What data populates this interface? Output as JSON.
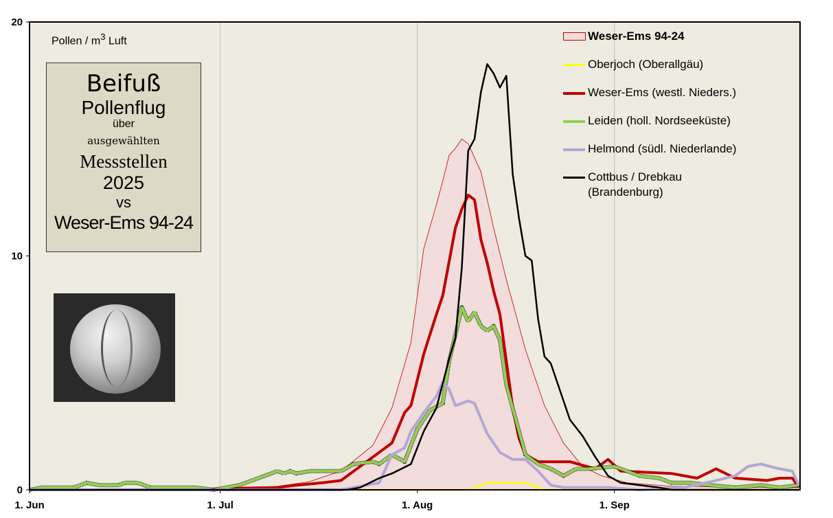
{
  "chart_data": {
    "type": "line",
    "ylabel": "Pollen / m³ Luft",
    "ylim": [
      0,
      20
    ],
    "yticks": [
      "0",
      "10",
      "20"
    ],
    "xlim": [
      "2025-06-01",
      "2025-09-30"
    ],
    "xticks": [
      {
        "date": "2025-06-01",
        "label": "1. Jun"
      },
      {
        "date": "2025-07-01",
        "label": "1. Jul"
      },
      {
        "date": "2025-08-01",
        "label": "1. Aug"
      },
      {
        "date": "2025-09-01",
        "label": "1. Sep"
      }
    ],
    "grid": "vertical at month starts",
    "legend_placement": "top-right",
    "series": [
      {
        "name": "Weser-Ems  94-24",
        "kind": "area",
        "color": "#c00000",
        "fill": "#f2dcdc",
        "points": [
          [
            "2025-06-01",
            0
          ],
          [
            "2025-07-01",
            0.02
          ],
          [
            "2025-07-10",
            0.15
          ],
          [
            "2025-07-15",
            0.35
          ],
          [
            "2025-07-20",
            0.8
          ],
          [
            "2025-07-25",
            1.9
          ],
          [
            "2025-07-28",
            3.5
          ],
          [
            "2025-07-31",
            6.3
          ],
          [
            "2025-08-02",
            10.3
          ],
          [
            "2025-08-04",
            12.2
          ],
          [
            "2025-08-05",
            13.2
          ],
          [
            "2025-08-06",
            14.3
          ],
          [
            "2025-08-07",
            14.6
          ],
          [
            "2025-08-08",
            15.0
          ],
          [
            "2025-08-09",
            14.8
          ],
          [
            "2025-08-11",
            13.6
          ],
          [
            "2025-08-13",
            11.2
          ],
          [
            "2025-08-15",
            9.0
          ],
          [
            "2025-08-18",
            6.0
          ],
          [
            "2025-08-21",
            3.6
          ],
          [
            "2025-08-24",
            2.0
          ],
          [
            "2025-08-27",
            1.0
          ],
          [
            "2025-08-30",
            0.6
          ],
          [
            "2025-09-03",
            0.3
          ],
          [
            "2025-09-10",
            0.15
          ],
          [
            "2025-09-30",
            0.1
          ]
        ]
      },
      {
        "name": "Oberjoch (Oberallgäu)",
        "kind": "line",
        "color": "#ffff00",
        "points": [
          [
            "2025-06-01",
            0
          ],
          [
            "2025-08-09",
            0
          ],
          [
            "2025-08-11",
            0.2
          ],
          [
            "2025-08-12",
            0.3
          ],
          [
            "2025-08-18",
            0.3
          ],
          [
            "2025-08-20",
            0.1
          ],
          [
            "2025-08-21",
            0
          ],
          [
            "2025-09-30",
            0
          ]
        ]
      },
      {
        "name": "Weser-Ems (westl. Nieders.)",
        "kind": "line",
        "color": "#c00000",
        "points": [
          [
            "2025-06-01",
            0
          ],
          [
            "2025-06-28",
            0
          ],
          [
            "2025-07-01",
            0.05
          ],
          [
            "2025-07-10",
            0.1
          ],
          [
            "2025-07-13",
            0.2
          ],
          [
            "2025-07-17",
            0.3
          ],
          [
            "2025-07-20",
            0.4
          ],
          [
            "2025-07-22",
            0.8
          ],
          [
            "2025-07-25",
            1.4
          ],
          [
            "2025-07-28",
            2.0
          ],
          [
            "2025-07-30",
            3.3
          ],
          [
            "2025-07-31",
            3.6
          ],
          [
            "2025-08-02",
            5.8
          ],
          [
            "2025-08-04",
            7.5
          ],
          [
            "2025-08-05",
            8.3
          ],
          [
            "2025-08-07",
            11.2
          ],
          [
            "2025-08-08",
            12.0
          ],
          [
            "2025-08-09",
            12.6
          ],
          [
            "2025-08-10",
            12.4
          ],
          [
            "2025-08-11",
            10.7
          ],
          [
            "2025-08-12",
            9.7
          ],
          [
            "2025-08-13",
            8.5
          ],
          [
            "2025-08-14",
            7.5
          ],
          [
            "2025-08-15",
            5.5
          ],
          [
            "2025-08-16",
            3.5
          ],
          [
            "2025-08-17",
            2.2
          ],
          [
            "2025-08-18",
            1.5
          ],
          [
            "2025-08-20",
            1.2
          ],
          [
            "2025-08-25",
            1.2
          ],
          [
            "2025-08-29",
            0.9
          ],
          [
            "2025-08-31",
            1.3
          ],
          [
            "2025-09-02",
            0.8
          ],
          [
            "2025-09-10",
            0.7
          ],
          [
            "2025-09-14",
            0.5
          ],
          [
            "2025-09-17",
            0.9
          ],
          [
            "2025-09-20",
            0.5
          ],
          [
            "2025-09-25",
            0.4
          ],
          [
            "2025-09-27",
            0.5
          ],
          [
            "2025-09-29",
            0.5
          ],
          [
            "2025-09-30",
            0.1
          ]
        ]
      },
      {
        "name": "Leiden (holl. Nordseeküste)",
        "kind": "line",
        "color": "#92d050",
        "points": [
          [
            "2025-06-01",
            0
          ],
          [
            "2025-06-03",
            0.1
          ],
          [
            "2025-06-08",
            0.1
          ],
          [
            "2025-06-10",
            0.3
          ],
          [
            "2025-06-12",
            0.2
          ],
          [
            "2025-06-15",
            0.2
          ],
          [
            "2025-06-16",
            0.3
          ],
          [
            "2025-06-18",
            0.3
          ],
          [
            "2025-06-20",
            0.1
          ],
          [
            "2025-06-27",
            0.1
          ],
          [
            "2025-06-30",
            0
          ],
          [
            "2025-07-01",
            0.05
          ],
          [
            "2025-07-04",
            0.2
          ],
          [
            "2025-07-07",
            0.5
          ],
          [
            "2025-07-10",
            0.8
          ],
          [
            "2025-07-11",
            0.7
          ],
          [
            "2025-07-12",
            0.8
          ],
          [
            "2025-07-13",
            0.7
          ],
          [
            "2025-07-15",
            0.8
          ],
          [
            "2025-07-20",
            0.8
          ],
          [
            "2025-07-22",
            1.1
          ],
          [
            "2025-07-25",
            1.2
          ],
          [
            "2025-07-26",
            1.1
          ],
          [
            "2025-07-28",
            1.5
          ],
          [
            "2025-07-30",
            1.2
          ],
          [
            "2025-08-01",
            2.6
          ],
          [
            "2025-08-03",
            3.4
          ],
          [
            "2025-08-05",
            3.7
          ],
          [
            "2025-08-06",
            5.5
          ],
          [
            "2025-08-08",
            7.8
          ],
          [
            "2025-08-09",
            7.2
          ],
          [
            "2025-08-10",
            7.6
          ],
          [
            "2025-08-11",
            7.0
          ],
          [
            "2025-08-12",
            6.8
          ],
          [
            "2025-08-13",
            7.0
          ],
          [
            "2025-08-14",
            6.4
          ],
          [
            "2025-08-15",
            4.5
          ],
          [
            "2025-08-17",
            2.5
          ],
          [
            "2025-08-18",
            1.5
          ],
          [
            "2025-08-20",
            1.1
          ],
          [
            "2025-08-22",
            0.9
          ],
          [
            "2025-08-24",
            0.6
          ],
          [
            "2025-08-26",
            0.9
          ],
          [
            "2025-08-28",
            0.9
          ],
          [
            "2025-09-01",
            1.0
          ],
          [
            "2025-09-05",
            0.6
          ],
          [
            "2025-09-08",
            0.5
          ],
          [
            "2025-09-10",
            0.3
          ],
          [
            "2025-09-13",
            0.3
          ],
          [
            "2025-09-16",
            0.2
          ],
          [
            "2025-09-20",
            0.1
          ],
          [
            "2025-09-24",
            0.2
          ],
          [
            "2025-09-27",
            0.1
          ],
          [
            "2025-09-30",
            0.2
          ]
        ]
      },
      {
        "name": "Helmond (südl. Niederlande)",
        "kind": "line",
        "color": "#b4a7d6",
        "points": [
          [
            "2025-06-01",
            0
          ],
          [
            "2025-07-20",
            0
          ],
          [
            "2025-07-22",
            0.1
          ],
          [
            "2025-07-24",
            0.2
          ],
          [
            "2025-07-26",
            0.3
          ],
          [
            "2025-07-28",
            1.5
          ],
          [
            "2025-07-30",
            1.8
          ],
          [
            "2025-07-31",
            2.5
          ],
          [
            "2025-08-02",
            3.3
          ],
          [
            "2025-08-04",
            4.0
          ],
          [
            "2025-08-05",
            4.6
          ],
          [
            "2025-08-06",
            4.3
          ],
          [
            "2025-08-07",
            3.6
          ],
          [
            "2025-08-09",
            3.8
          ],
          [
            "2025-08-10",
            3.7
          ],
          [
            "2025-08-12",
            2.4
          ],
          [
            "2025-08-14",
            1.6
          ],
          [
            "2025-08-16",
            1.3
          ],
          [
            "2025-08-18",
            1.3
          ],
          [
            "2025-08-20",
            0.8
          ],
          [
            "2025-08-22",
            0.2
          ],
          [
            "2025-08-24",
            0.1
          ],
          [
            "2025-08-31",
            0.1
          ],
          [
            "2025-09-05",
            0
          ],
          [
            "2025-09-12",
            0.1
          ],
          [
            "2025-09-17",
            0.4
          ],
          [
            "2025-09-20",
            0.6
          ],
          [
            "2025-09-22",
            1.0
          ],
          [
            "2025-09-24",
            1.1
          ],
          [
            "2025-09-27",
            0.9
          ],
          [
            "2025-09-29",
            0.8
          ],
          [
            "2025-09-30",
            0.2
          ]
        ]
      },
      {
        "name": "Cottbus / Drebkau (Brandenburg)",
        "kind": "line",
        "color": "#000000",
        "points": [
          [
            "2025-06-01",
            0
          ],
          [
            "2025-07-21",
            0
          ],
          [
            "2025-07-23",
            0.1
          ],
          [
            "2025-07-26",
            0.5
          ],
          [
            "2025-07-28",
            0.7
          ],
          [
            "2025-07-31",
            1.1
          ],
          [
            "2025-08-02",
            2.5
          ],
          [
            "2025-08-04",
            3.5
          ],
          [
            "2025-08-06",
            5.6
          ],
          [
            "2025-08-07",
            6.5
          ],
          [
            "2025-08-08",
            9.5
          ],
          [
            "2025-08-09",
            14.5
          ],
          [
            "2025-08-10",
            15.0
          ],
          [
            "2025-08-11",
            17.0
          ],
          [
            "2025-08-12",
            18.2
          ],
          [
            "2025-08-13",
            17.8
          ],
          [
            "2025-08-14",
            17.2
          ],
          [
            "2025-08-15",
            17.7
          ],
          [
            "2025-08-16",
            13.5
          ],
          [
            "2025-08-17",
            11.6
          ],
          [
            "2025-08-18",
            10.0
          ],
          [
            "2025-08-19",
            9.8
          ],
          [
            "2025-08-20",
            7.3
          ],
          [
            "2025-08-21",
            5.7
          ],
          [
            "2025-08-22",
            5.4
          ],
          [
            "2025-08-25",
            3.0
          ],
          [
            "2025-08-27",
            2.3
          ],
          [
            "2025-08-29",
            1.4
          ],
          [
            "2025-08-31",
            0.6
          ],
          [
            "2025-09-02",
            0.3
          ],
          [
            "2025-09-05",
            0.2
          ],
          [
            "2025-09-08",
            0.1
          ],
          [
            "2025-09-10",
            0
          ],
          [
            "2025-09-30",
            0
          ]
        ]
      }
    ]
  },
  "title_box": {
    "line1": "Beifuß",
    "line2": "Pollenflug",
    "line3": "über",
    "line4": "ausgewählten",
    "line5": "Messstellen",
    "line6": "2025",
    "line7": "vs",
    "line8": "Weser-Ems 94-24"
  },
  "legend": {
    "items": [
      {
        "label": "Weser-Ems  94-24",
        "color": "#c00000"
      },
      {
        "label": "Oberjoch (Oberallgäu)",
        "color": "#ffff00"
      },
      {
        "label": "Weser-Ems (westl. Nieders.)",
        "color": "#c00000"
      },
      {
        "label": "Leiden (holl. Nordseeküste)",
        "color": "#92d050"
      },
      {
        "label": "Helmond (südl. Niederlande)",
        "color": "#b4a7d6"
      },
      {
        "label": "Cottbus / Drebkau",
        "label2": "(Brandenburg)",
        "color": "#000000"
      }
    ]
  },
  "unit_label": {
    "pre": "Pollen  / m",
    "sup": "3",
    "post": " Luft"
  },
  "colors": {
    "plot_bg": "#eeebe0",
    "title_box_bg": "#ded9c4"
  }
}
